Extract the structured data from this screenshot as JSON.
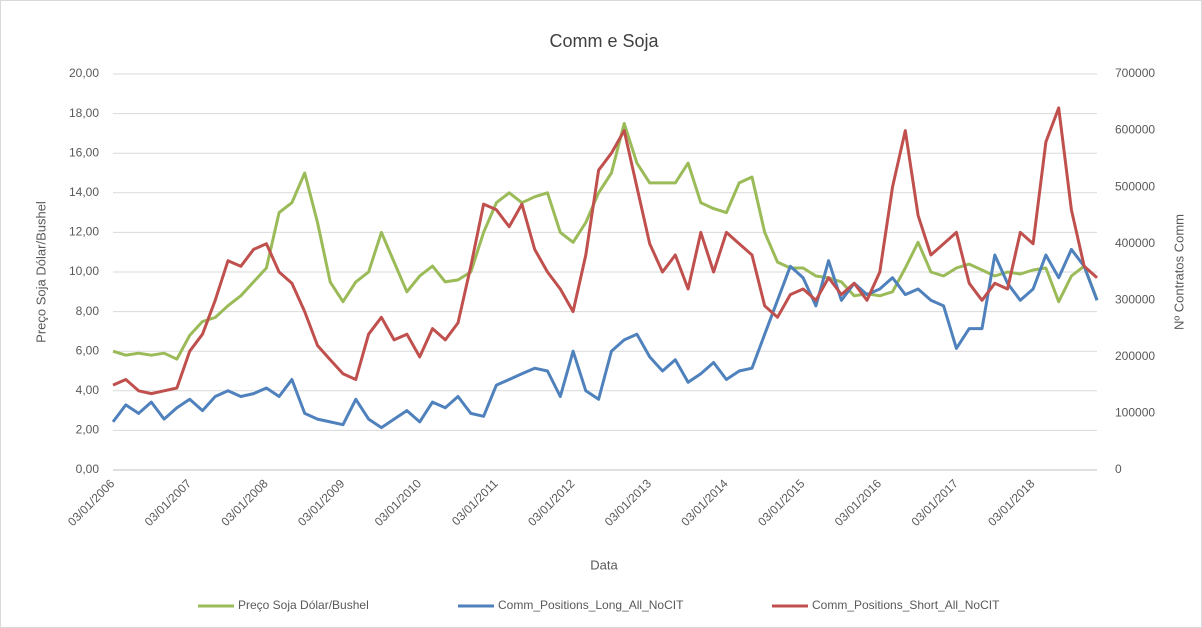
{
  "chart_data": {
    "type": "line",
    "title": "Comm e Soja",
    "x_label": "Data",
    "y_label": "Preço Soja Dólar/Bushel",
    "y2_label": "Nº Contratos Comm",
    "categories": [
      "03/01/2006",
      null,
      null,
      null,
      null,
      null,
      "03/01/2007",
      null,
      null,
      null,
      null,
      null,
      "03/01/2008",
      null,
      null,
      null,
      null,
      null,
      "03/01/2009",
      null,
      null,
      null,
      null,
      null,
      "03/01/2010",
      null,
      null,
      null,
      null,
      null,
      "03/01/2011",
      null,
      null,
      null,
      null,
      null,
      "03/01/2012",
      null,
      null,
      null,
      null,
      null,
      "03/01/2013",
      null,
      null,
      null,
      null,
      null,
      "03/01/2014",
      null,
      null,
      null,
      null,
      null,
      "03/01/2015",
      null,
      null,
      null,
      null,
      null,
      "03/01/2016",
      null,
      null,
      null,
      null,
      null,
      "03/01/2017",
      null,
      null,
      null,
      null,
      null,
      "03/01/2018",
      null,
      null,
      null,
      null,
      null
    ],
    "series": [
      {
        "name": "Preço Soja Dólar/Bushel",
        "color": "#9bbb59",
        "values": [
          6.0,
          5.8,
          5.9,
          5.8,
          5.9,
          5.6,
          6.8,
          7.5,
          7.7,
          8.3,
          8.8,
          9.5,
          10.2,
          13.0,
          13.5,
          15.0,
          12.5,
          9.5,
          8.5,
          9.5,
          10.0,
          12.0,
          10.5,
          9.0,
          9.8,
          10.3,
          9.5,
          9.6,
          10.0,
          12.0,
          13.5,
          14.0,
          13.5,
          13.8,
          14.0,
          12.0,
          11.5,
          12.5,
          14.0,
          15.0,
          17.5,
          15.5,
          14.5,
          14.5,
          14.5,
          15.5,
          13.5,
          13.2,
          13.0,
          14.5,
          14.8,
          12.0,
          10.5,
          10.2,
          10.2,
          9.8,
          9.7,
          9.5,
          8.8,
          8.9,
          8.8,
          9.0,
          10.2,
          11.5,
          10.0,
          9.8,
          10.2,
          10.4,
          10.1,
          9.8,
          10.0,
          9.9,
          10.1,
          10.2,
          8.5,
          9.8,
          10.3,
          8.6
        ]
      },
      {
        "name": "Comm_Positions_Long_All_NoCIT",
        "color": "#4f81bd",
        "axis": "y2",
        "values": [
          85000,
          115000,
          100000,
          120000,
          90000,
          110000,
          125000,
          105000,
          130000,
          140000,
          130000,
          135000,
          145000,
          130000,
          160000,
          100000,
          90000,
          85000,
          80000,
          125000,
          90000,
          75000,
          90000,
          105000,
          85000,
          120000,
          110000,
          130000,
          100000,
          95000,
          150000,
          160000,
          170000,
          180000,
          175000,
          130000,
          210000,
          140000,
          125000,
          210000,
          230000,
          240000,
          200000,
          175000,
          195000,
          155000,
          170000,
          190000,
          160000,
          175000,
          180000,
          240000,
          300000,
          360000,
          340000,
          290000,
          370000,
          300000,
          330000,
          310000,
          320000,
          340000,
          310000,
          320000,
          300000,
          290000,
          215000,
          250000,
          250000,
          380000,
          330000,
          300000,
          320000,
          380000,
          340000,
          390000,
          360000,
          300000
        ]
      },
      {
        "name": "Comm_Positions_Short_All_NoCIT",
        "color": "#c0504d",
        "axis": "y2",
        "values": [
          150000,
          160000,
          140000,
          135000,
          140000,
          145000,
          210000,
          240000,
          300000,
          370000,
          360000,
          390000,
          400000,
          350000,
          330000,
          280000,
          220000,
          195000,
          170000,
          160000,
          240000,
          270000,
          230000,
          240000,
          200000,
          250000,
          230000,
          260000,
          360000,
          470000,
          460000,
          430000,
          470000,
          390000,
          350000,
          320000,
          280000,
          380000,
          530000,
          560000,
          600000,
          500000,
          400000,
          350000,
          380000,
          320000,
          420000,
          350000,
          420000,
          400000,
          380000,
          290000,
          270000,
          310000,
          320000,
          300000,
          340000,
          310000,
          330000,
          300000,
          350000,
          500000,
          600000,
          450000,
          380000,
          400000,
          420000,
          330000,
          300000,
          330000,
          320000,
          420000,
          400000,
          580000,
          640000,
          460000,
          360000,
          340000
        ]
      }
    ],
    "ylim": [
      0,
      20
    ],
    "yticks": [
      {
        "value": 0,
        "label": "0,00"
      },
      {
        "value": 2,
        "label": "2,00"
      },
      {
        "value": 4,
        "label": "4,00"
      },
      {
        "value": 6,
        "label": "6,00"
      },
      {
        "value": 8,
        "label": "8,00"
      },
      {
        "value": 10,
        "label": "10,00"
      },
      {
        "value": 12,
        "label": "12,00"
      },
      {
        "value": 14,
        "label": "14,00"
      },
      {
        "value": 16,
        "label": "16,00"
      },
      {
        "value": 18,
        "label": "18,00"
      },
      {
        "value": 20,
        "label": "20,00"
      }
    ],
    "y2lim": [
      0,
      700000
    ],
    "y2ticks": [
      0,
      100000,
      200000,
      300000,
      400000,
      500000,
      600000,
      700000
    ],
    "grid": true,
    "legend": "bottom"
  }
}
